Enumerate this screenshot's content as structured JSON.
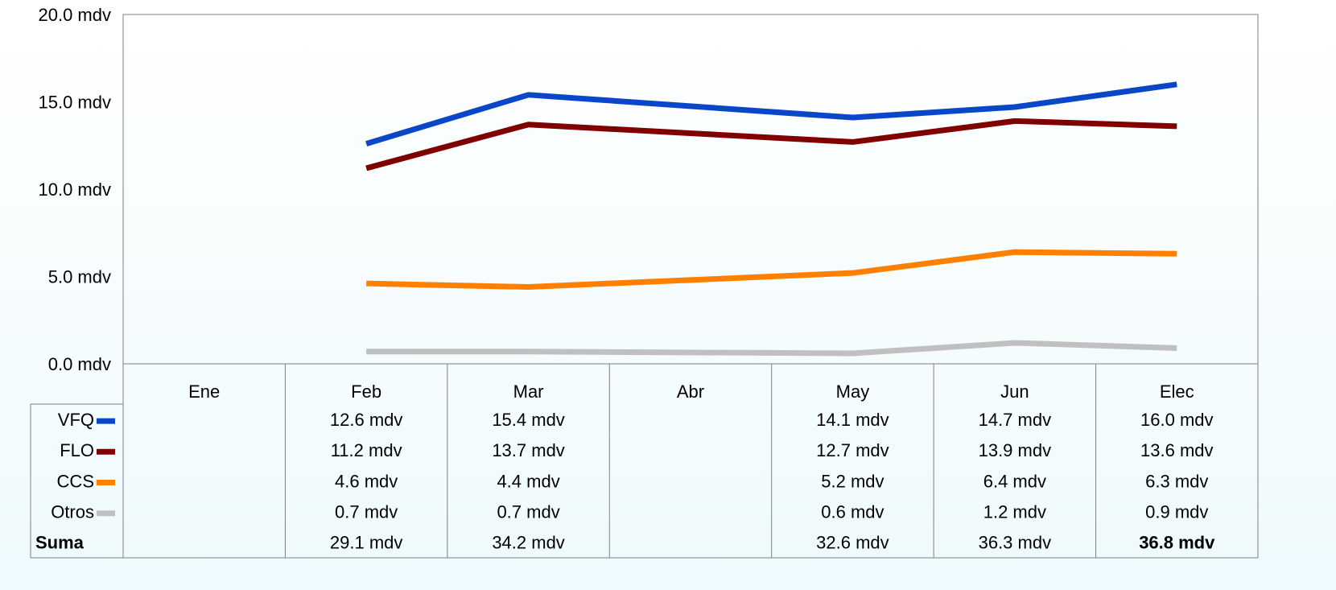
{
  "chart_data": {
    "type": "line",
    "categories": [
      "Ene",
      "Feb",
      "Mar",
      "Abr",
      "May",
      "Jun",
      "Elec"
    ],
    "span_gaps": true,
    "grid": false,
    "ylim": [
      0,
      20
    ],
    "yticks": [
      {
        "value": 0,
        "label": "0.0 mdv"
      },
      {
        "value": 5,
        "label": "5.0 mdv"
      },
      {
        "value": 10,
        "label": "10.0 mdv"
      },
      {
        "value": 15,
        "label": "15.0 mdv"
      },
      {
        "value": 20,
        "label": "20.0 mdv"
      }
    ],
    "series": [
      {
        "name": "VFQ",
        "color": "#0a46c8",
        "values": [
          null,
          12.6,
          15.4,
          null,
          14.1,
          14.7,
          16.0
        ],
        "value_labels": [
          null,
          "12.6 mdv",
          "15.4 mdv",
          null,
          "14.1 mdv",
          "14.7 mdv",
          "16.0 mdv"
        ]
      },
      {
        "name": "FLO",
        "color": "#800000",
        "values": [
          null,
          11.2,
          13.7,
          null,
          12.7,
          13.9,
          13.6
        ],
        "value_labels": [
          null,
          "11.2 mdv",
          "13.7 mdv",
          null,
          "12.7 mdv",
          "13.9 mdv",
          "13.6 mdv"
        ]
      },
      {
        "name": "CCS",
        "color": "#ff8000",
        "values": [
          null,
          4.6,
          4.4,
          null,
          5.2,
          6.4,
          6.3
        ],
        "value_labels": [
          null,
          "4.6 mdv",
          "4.4 mdv",
          null,
          "5.2 mdv",
          "6.4 mdv",
          "6.3 mdv"
        ]
      },
      {
        "name": "Otros",
        "color": "#c0c0c0",
        "values": [
          null,
          0.7,
          0.7,
          null,
          0.6,
          1.2,
          0.9
        ],
        "value_labels": [
          null,
          "0.7 mdv",
          "0.7 mdv",
          null,
          "0.6 mdv",
          "1.2 mdv",
          "0.9 mdv"
        ]
      }
    ],
    "totals": {
      "name": "Suma",
      "values": [
        null,
        29.1,
        34.2,
        null,
        32.6,
        36.3,
        36.8
      ],
      "value_labels": [
        null,
        "29.1 mdv",
        "34.2 mdv",
        null,
        "32.6 mdv",
        "36.3 mdv",
        "36.8 mdv"
      ]
    }
  }
}
